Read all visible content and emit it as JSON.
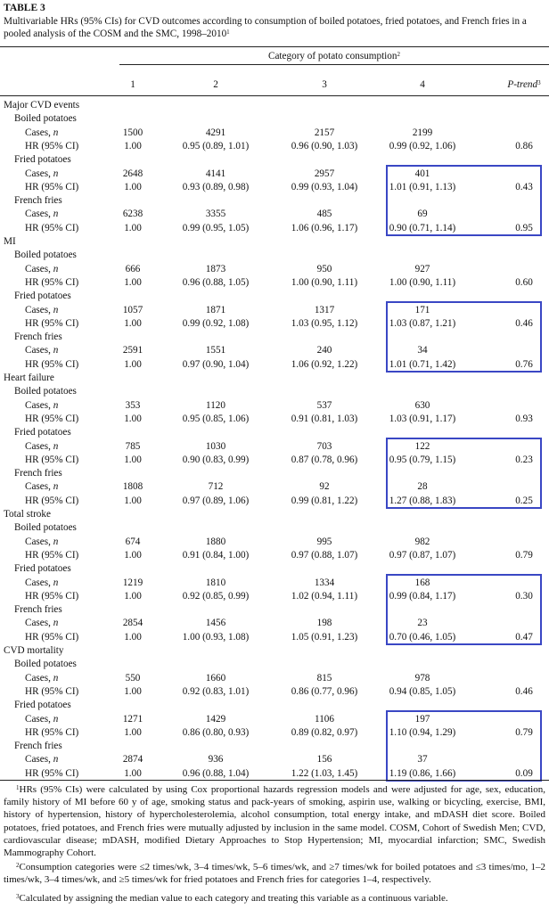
{
  "table": {
    "label": "TABLE 3",
    "caption": "Multivariable HRs (95% CIs) for CVD outcomes according to consumption of boiled potatoes, fried potatoes, and French fries in a pooled analysis of the COSM and the SMC, 1998–2010",
    "caption_sup": "1",
    "category_header": "Category of potato consumption",
    "category_header_sup": "2",
    "columns": [
      "1",
      "2",
      "3",
      "4"
    ],
    "ptrend_header": "P-trend",
    "ptrend_sup": "3",
    "cases_label": "Cases, n",
    "hr_label": "HR (95% CI)",
    "outcomes": [
      {
        "name": "Major CVD events",
        "foods": [
          {
            "name": "Boiled potatoes",
            "cases": [
              "1500",
              "4291",
              "2157",
              "2199"
            ],
            "hr": [
              "1.00",
              "0.95 (0.89, 1.01)",
              "0.96 (0.90, 1.03)",
              "0.99 (0.92, 1.06)"
            ],
            "ptrend": "0.86"
          },
          {
            "name": "Fried potatoes",
            "cases": [
              "2648",
              "4141",
              "2957",
              "401"
            ],
            "hr": [
              "1.00",
              "0.93 (0.89, 0.98)",
              "0.99 (0.93, 1.04)",
              "1.01 (0.91, 1.13)"
            ],
            "ptrend": "0.43"
          },
          {
            "name": "French fries",
            "cases": [
              "6238",
              "3355",
              "485",
              "69"
            ],
            "hr": [
              "1.00",
              "0.99 (0.95, 1.05)",
              "1.06 (0.96, 1.17)",
              "0.90 (0.71, 1.14)"
            ],
            "ptrend": "0.95"
          }
        ]
      },
      {
        "name": "MI",
        "foods": [
          {
            "name": "Boiled potatoes",
            "cases": [
              "666",
              "1873",
              "950",
              "927"
            ],
            "hr": [
              "1.00",
              "0.96 (0.88, 1.05)",
              "1.00 (0.90, 1.11)",
              "1.00 (0.90, 1.11)"
            ],
            "ptrend": "0.60"
          },
          {
            "name": "Fried potatoes",
            "cases": [
              "1057",
              "1871",
              "1317",
              "171"
            ],
            "hr": [
              "1.00",
              "0.99 (0.92, 1.08)",
              "1.03 (0.95, 1.12)",
              "1.03 (0.87, 1.21)"
            ],
            "ptrend": "0.46"
          },
          {
            "name": "French fries",
            "cases": [
              "2591",
              "1551",
              "240",
              "34"
            ],
            "hr": [
              "1.00",
              "0.97 (0.90, 1.04)",
              "1.06 (0.92, 1.22)",
              "1.01 (0.71, 1.42)"
            ],
            "ptrend": "0.76"
          }
        ]
      },
      {
        "name": "Heart failure",
        "foods": [
          {
            "name": "Boiled potatoes",
            "cases": [
              "353",
              "1120",
              "537",
              "630"
            ],
            "hr": [
              "1.00",
              "0.95 (0.85, 1.06)",
              "0.91 (0.81, 1.03)",
              "1.03 (0.91, 1.17)"
            ],
            "ptrend": "0.93"
          },
          {
            "name": "Fried potatoes",
            "cases": [
              "785",
              "1030",
              "703",
              "122"
            ],
            "hr": [
              "1.00",
              "0.90 (0.83, 0.99)",
              "0.87 (0.78, 0.96)",
              "0.95 (0.79, 1.15)"
            ],
            "ptrend": "0.23"
          },
          {
            "name": "French fries",
            "cases": [
              "1808",
              "712",
              "92",
              "28"
            ],
            "hr": [
              "1.00",
              "0.97 (0.89, 1.06)",
              "0.99 (0.81, 1.22)",
              "1.27 (0.88, 1.83)"
            ],
            "ptrend": "0.25"
          }
        ]
      },
      {
        "name": "Total stroke",
        "foods": [
          {
            "name": "Boiled potatoes",
            "cases": [
              "674",
              "1880",
              "995",
              "982"
            ],
            "hr": [
              "1.00",
              "0.91 (0.84, 1.00)",
              "0.97 (0.88, 1.07)",
              "0.97 (0.87, 1.07)"
            ],
            "ptrend": "0.79"
          },
          {
            "name": "Fried potatoes",
            "cases": [
              "1219",
              "1810",
              "1334",
              "168"
            ],
            "hr": [
              "1.00",
              "0.92 (0.85, 0.99)",
              "1.02 (0.94, 1.11)",
              "0.99 (0.84, 1.17)"
            ],
            "ptrend": "0.30"
          },
          {
            "name": "French fries",
            "cases": [
              "2854",
              "1456",
              "198",
              "23"
            ],
            "hr": [
              "1.00",
              "1.00 (0.93, 1.08)",
              "1.05 (0.91, 1.23)",
              "0.70 (0.46, 1.05)"
            ],
            "ptrend": "0.47"
          }
        ]
      },
      {
        "name": "CVD mortality",
        "foods": [
          {
            "name": "Boiled potatoes",
            "cases": [
              "550",
              "1660",
              "815",
              "978"
            ],
            "hr": [
              "1.00",
              "0.92 (0.83, 1.01)",
              "0.86 (0.77, 0.96)",
              "0.94 (0.85, 1.05)"
            ],
            "ptrend": "0.46"
          },
          {
            "name": "Fried potatoes",
            "cases": [
              "1271",
              "1429",
              "1106",
              "197"
            ],
            "hr": [
              "1.00",
              "0.86 (0.80, 0.93)",
              "0.89 (0.82, 0.97)",
              "1.10 (0.94, 1.29)"
            ],
            "ptrend": "0.79"
          },
          {
            "name": "French fries",
            "cases": [
              "2874",
              "936",
              "156",
              "37"
            ],
            "hr": [
              "1.00",
              "0.96 (0.88, 1.04)",
              "1.22 (1.03, 1.45)",
              "1.19 (0.86, 1.66)"
            ],
            "ptrend": "0.09"
          }
        ]
      }
    ],
    "highlight_color": "#3a47c4",
    "footnotes": [
      {
        "sup": "1",
        "text": "HRs (95% CIs) were calculated by using Cox proportional hazards regression models and were adjusted for age, sex, education, family history of MI before 60 y of age, smoking status and pack-years of smoking, aspirin use, walking or bicycling, exercise, BMI, history of hypertension, history of hypercholesterolemia, alcohol consumption, total energy intake, and mDASH diet score. Boiled potatoes, fried potatoes, and French fries were mutually adjusted by inclusion in the same model. COSM, Cohort of Swedish Men; CVD, cardiovascular disease; mDASH, modified Dietary Approaches to Stop Hypertension; MI, myocardial infarction; SMC, Swedish Mammography Cohort."
      },
      {
        "sup": "2",
        "text": "Consumption categories were ≤2 times/wk, 3–4 times/wk, 5–6 times/wk, and ≥7 times/wk for boiled potatoes and ≤3 times/mo, 1–2 times/wk, 3–4 times/wk, and ≥5 times/wk for fried potatoes and French fries for categories 1–4, respectively."
      },
      {
        "sup": "3",
        "text": "Calculated by assigning the median value to each category and treating this variable as a continuous variable."
      }
    ]
  }
}
